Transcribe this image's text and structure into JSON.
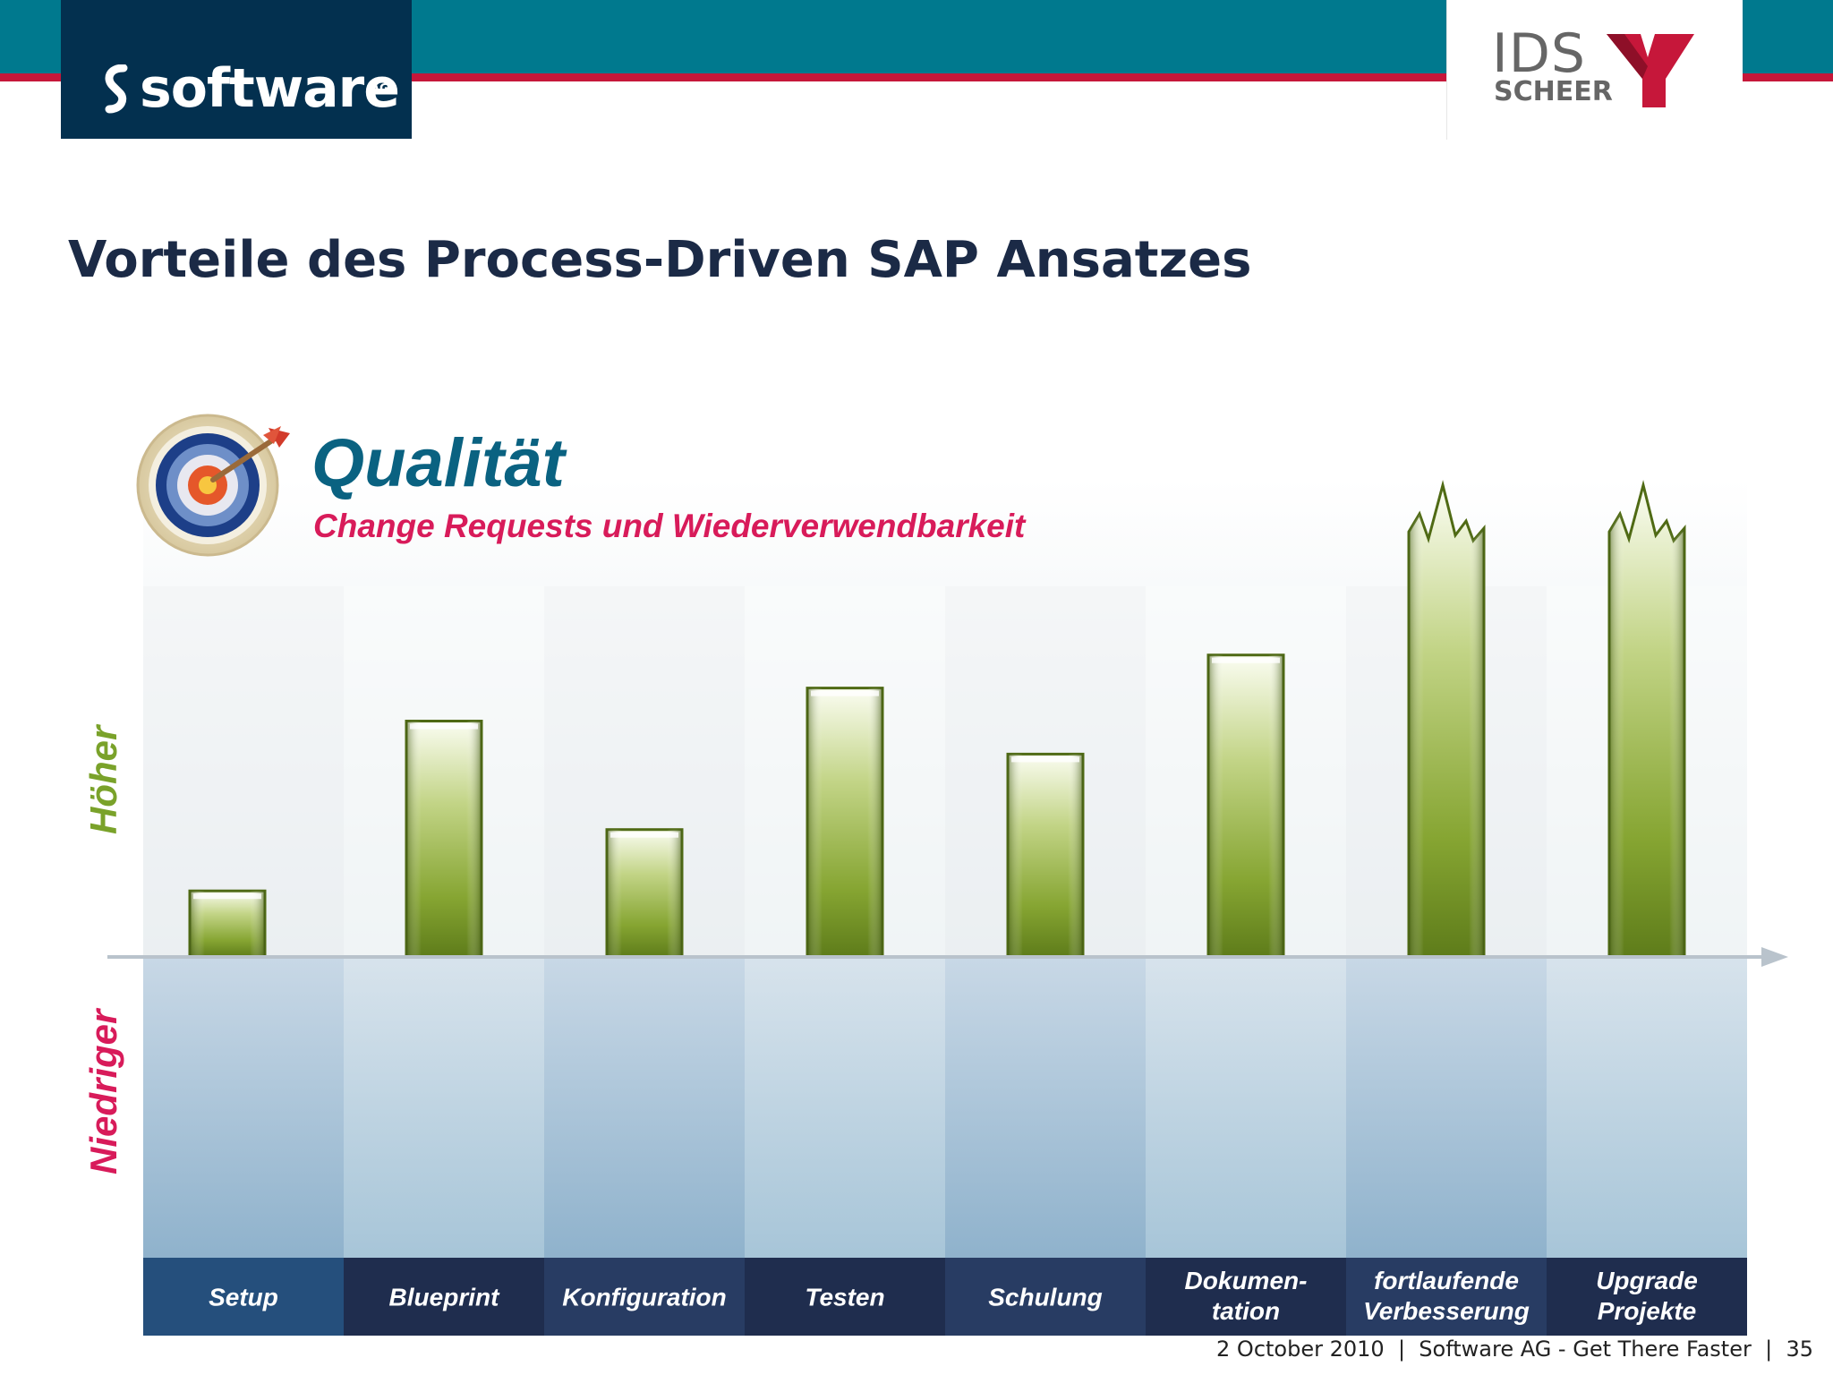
{
  "header": {
    "left_logo_text": "software",
    "left_logo_suffix": "AG",
    "right_logo_line1": "IDS",
    "right_logo_line2": "SCHEER"
  },
  "page_title": "Vorteile des Process-Driven SAP Ansatzes",
  "footer": {
    "text": "2 October 2010  |  Software AG - Get There Faster  |  35"
  },
  "colors": {
    "top_bar": "#00798e",
    "red_line": "#c6173a",
    "title_blue": "#0a6281",
    "subtitle_magenta": "#d81b5a",
    "higher_green": "#7aa22a",
    "lower_magenta": "#d81b5a",
    "bar_green": "#6e8e1c",
    "category_bar_dark": "#1f2d4e"
  },
  "icons": {
    "chart_icon": "target-dart-icon"
  },
  "chart_data": {
    "type": "bar",
    "title": "Qualität",
    "subtitle": "Change Requests und Wiederverwendbarkeit",
    "ylabel_positive": "Höher",
    "ylabel_negative": "Niedriger",
    "categories": [
      "Setup",
      "Blueprint",
      "Konfiguration",
      "Testen",
      "Schulung",
      "Dokumen-\ntation",
      "fortlaufende\nVerbesserung",
      "Upgrade\nProjekte"
    ],
    "values": [
      0.14,
      0.5,
      0.27,
      0.57,
      0.43,
      0.64,
      1.0,
      1.0
    ],
    "open_ended": [
      false,
      false,
      false,
      false,
      false,
      false,
      true,
      true
    ],
    "ylim": [
      -0.7,
      1.0
    ],
    "grid": false,
    "legend": "none"
  }
}
